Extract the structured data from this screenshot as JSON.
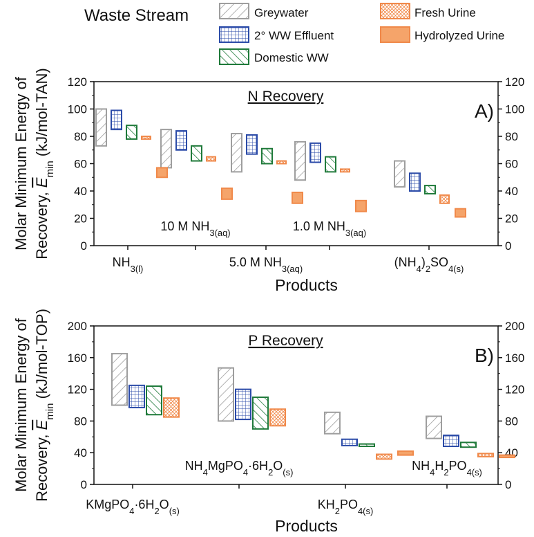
{
  "legend": {
    "title": "Waste Stream",
    "entries": [
      {
        "key": "greywater",
        "label": "Greywater"
      },
      {
        "key": "effluent",
        "label": "2° WW Effluent"
      },
      {
        "key": "domestic",
        "label": "Domestic WW"
      },
      {
        "key": "fresh_urine",
        "label": "Fresh Urine"
      },
      {
        "key": "hydrolyzed_urine",
        "label": "Hydrolyzed Urine"
      }
    ]
  },
  "series_style": {
    "greywater": {
      "stroke": "#9e9e9e",
      "pattern": "diagonal-back"
    },
    "effluent": {
      "stroke": "#2b4ba8",
      "pattern": "grid"
    },
    "domestic": {
      "stroke": "#1f7a3a",
      "pattern": "diagonal"
    },
    "fresh_urine": {
      "stroke": "#f0894a",
      "pattern": "crosshatch"
    },
    "hydrolyzed_urine": {
      "stroke": "#f0894a",
      "fill": "#f5a46a",
      "pattern": "solid"
    }
  },
  "chart_data": [
    {
      "type": "bar",
      "bar_style": "floating-range",
      "title": "N Recovery",
      "panel_label": "A)",
      "ylabel": {
        "line1": "Molar Minimum Energy of",
        "line2_prefix": "Recovery, ",
        "symbol": "E",
        "symbol_sub": "min",
        "unit": " (kJ/mol-TAN)"
      },
      "xlabel": "Products",
      "ylim": [
        0,
        120
      ],
      "yticks": [
        "0",
        "20",
        "40",
        "60",
        "80",
        "100",
        "120"
      ],
      "categories": [
        {
          "label": "NH3(l)",
          "base": "NH",
          "sub": "3(l)",
          "row": "bottom"
        },
        {
          "label": "10 M NH3(aq)",
          "base": "10 M NH",
          "sub": "3(aq)",
          "row": "top"
        },
        {
          "label": "5.0 M NH3(aq)",
          "base": "5.0 M NH",
          "sub": "3(aq)",
          "row": "bottom"
        },
        {
          "label": "1.0 M NH3(aq)",
          "base": "1.0 M NH",
          "sub": "3(aq)",
          "row": "top"
        },
        {
          "label": "(NH4)2SO4(s)",
          "parts": [
            [
              "(NH",
              ""
            ],
            [
              "4",
              "sub"
            ],
            [
              ")",
              ""
            ],
            [
              "2",
              "sub"
            ],
            [
              "SO",
              ""
            ],
            [
              "4(s)",
              "sub"
            ]
          ],
          "row": "bottom"
        }
      ],
      "series": [
        {
          "name": "Greywater",
          "key": "greywater",
          "ranges": [
            [
              73,
              100
            ],
            [
              57,
              85
            ],
            [
              54,
              82
            ],
            [
              48,
              76
            ],
            [
              43,
              62
            ]
          ]
        },
        {
          "name": "2° WW Effluent",
          "key": "effluent",
          "ranges": [
            [
              85,
              99
            ],
            [
              70,
              84
            ],
            [
              67,
              81
            ],
            [
              61,
              75
            ],
            [
              40,
              53
            ]
          ]
        },
        {
          "name": "Domestic WW",
          "key": "domestic",
          "ranges": [
            [
              78,
              88
            ],
            [
              62,
              73
            ],
            [
              60,
              71
            ],
            [
              54,
              65
            ],
            [
              38,
              44
            ]
          ]
        },
        {
          "name": "Fresh Urine",
          "key": "fresh_urine",
          "ranges": [
            [
              78,
              80
            ],
            [
              62,
              65
            ],
            [
              60,
              62
            ],
            [
              54,
              56
            ],
            [
              31,
              37
            ]
          ]
        },
        {
          "name": "Hydrolyzed Urine",
          "key": "hydrolyzed_urine",
          "ranges": [
            [
              50,
              57
            ],
            [
              34,
              42
            ],
            [
              31,
              39
            ],
            [
              25,
              33
            ],
            [
              21,
              27
            ]
          ]
        }
      ]
    },
    {
      "type": "bar",
      "bar_style": "floating-range",
      "title": "P Recovery",
      "panel_label": "B)",
      "ylabel": {
        "line1": "Molar Minimum Energy of",
        "line2_prefix": "Recovery, ",
        "symbol": "E",
        "symbol_sub": "min",
        "unit": " (kJ/mol-TOP)"
      },
      "xlabel": "Products",
      "ylim": [
        0,
        200
      ],
      "yticks": [
        "0",
        "40",
        "80",
        "120",
        "160",
        "200"
      ],
      "categories": [
        {
          "label": "KMgPO4·6H2O(s)",
          "parts": [
            [
              "KMgPO",
              ""
            ],
            [
              "4",
              "sub"
            ],
            [
              "·6H",
              ""
            ],
            [
              "2",
              "sub"
            ],
            [
              "O",
              ""
            ],
            [
              "(s)",
              "sub"
            ]
          ],
          "row": "bottom"
        },
        {
          "label": "NH4MgPO4·6H2O(s)",
          "parts": [
            [
              "NH",
              ""
            ],
            [
              "4",
              "sub"
            ],
            [
              "MgPO",
              ""
            ],
            [
              "4",
              "sub"
            ],
            [
              "·6H",
              ""
            ],
            [
              "2",
              "sub"
            ],
            [
              "O",
              ""
            ],
            [
              "(s)",
              "sub"
            ]
          ],
          "row": "top"
        },
        {
          "label": "KH2PO4(s)",
          "parts": [
            [
              "KH",
              ""
            ],
            [
              "2",
              "sub"
            ],
            [
              "PO",
              ""
            ],
            [
              "4(s)",
              "sub"
            ]
          ],
          "row": "bottom"
        },
        {
          "label": "NH4H2PO4(s)",
          "parts": [
            [
              "NH",
              ""
            ],
            [
              "4",
              "sub"
            ],
            [
              "H",
              ""
            ],
            [
              "2",
              "sub"
            ],
            [
              "PO",
              ""
            ],
            [
              "4(s)",
              "sub"
            ]
          ],
          "row": "top"
        }
      ],
      "series": [
        {
          "name": "Greywater",
          "key": "greywater",
          "ranges": [
            [
              100,
              165
            ],
            [
              80,
              147
            ],
            [
              64,
              91
            ],
            [
              58,
              86
            ]
          ]
        },
        {
          "name": "2° WW Effluent",
          "key": "effluent",
          "ranges": [
            [
              97,
              125
            ],
            [
              82,
              120
            ],
            [
              49,
              57
            ],
            [
              48,
              62
            ]
          ]
        },
        {
          "name": "Domestic WW",
          "key": "domestic",
          "ranges": [
            [
              88,
              124
            ],
            [
              70,
              110
            ],
            [
              48,
              51
            ],
            [
              47,
              53
            ]
          ]
        },
        {
          "name": "Fresh Urine",
          "key": "fresh_urine",
          "ranges": [
            [
              85,
              109
            ],
            [
              74,
              95
            ],
            [
              32,
              38
            ],
            [
              35,
              39
            ]
          ]
        },
        {
          "name": "Hydrolyzed Urine",
          "key": "hydrolyzed_urine",
          "ranges": null
        }
      ],
      "hydrolyzed_urine_ranges": [
        null,
        null,
        [
          37,
          42
        ],
        [
          34,
          37
        ]
      ]
    }
  ]
}
